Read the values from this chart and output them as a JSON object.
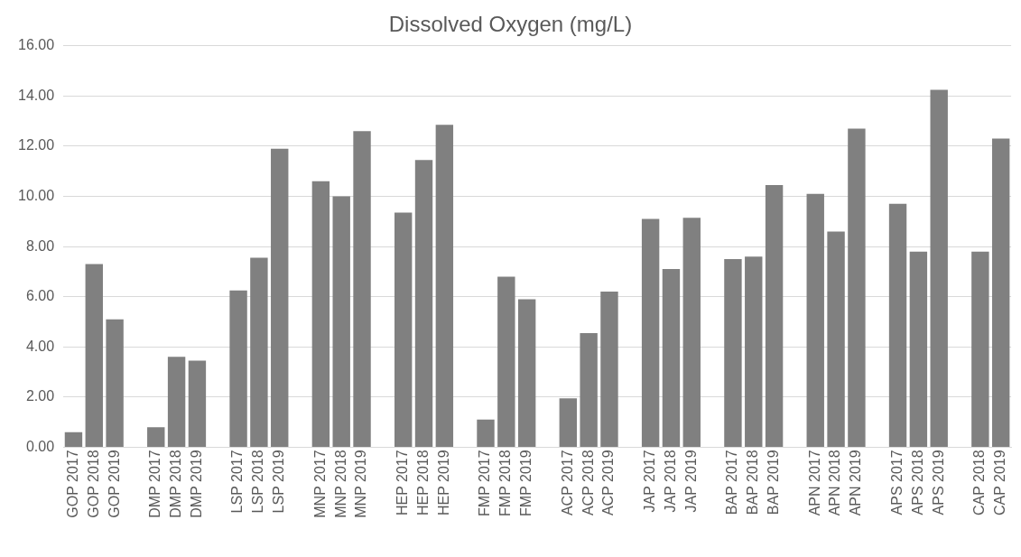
{
  "chart_data": {
    "type": "bar",
    "title": "Dissolved Oxygen (mg/L)",
    "categories": [
      "GOP 2017",
      "GOP 2018",
      "GOP 2019",
      null,
      "DMP 2017",
      "DMP 2018",
      "DMP 2019",
      null,
      "LSP 2017",
      "LSP 2018",
      "LSP 2019",
      null,
      "MNP 2017",
      "MNP 2018",
      "MNP 2019",
      null,
      "HEP 2017",
      "HEP 2018",
      "HEP 2019",
      null,
      "FMP 2017",
      "FMP 2018",
      "FMP 2019",
      null,
      "ACP 2017",
      "ACP 2018",
      "ACP 2019",
      null,
      "JAP 2017",
      "JAP 2018",
      "JAP 2019",
      null,
      "BAP 2017",
      "BAP 2018",
      "BAP 2019",
      null,
      "APN 2017",
      "APN 2018",
      "APN 2019",
      null,
      "APS 2017",
      "APS 2018",
      "APS 2019",
      null,
      "CAP 2018",
      "CAP 2019"
    ],
    "values": [
      0.6,
      7.3,
      5.1,
      null,
      0.8,
      3.6,
      3.45,
      null,
      6.25,
      7.55,
      11.9,
      null,
      10.6,
      10.0,
      12.6,
      null,
      9.35,
      11.45,
      12.85,
      null,
      1.1,
      6.8,
      5.9,
      null,
      1.95,
      4.55,
      6.2,
      null,
      9.1,
      7.1,
      9.15,
      null,
      7.5,
      7.6,
      10.45,
      null,
      10.1,
      8.6,
      12.7,
      null,
      9.7,
      7.8,
      14.25,
      null,
      7.8,
      12.3
    ],
    "color": "#808080",
    "ylim": [
      0,
      16
    ],
    "yticks": [
      {
        "value": 0,
        "label": "0.00"
      },
      {
        "value": 2,
        "label": "2.00"
      },
      {
        "value": 4,
        "label": "4.00"
      },
      {
        "value": 6,
        "label": "6.00"
      },
      {
        "value": 8,
        "label": "8.00"
      },
      {
        "value": 10,
        "label": "10.00"
      },
      {
        "value": 12,
        "label": "12.00"
      },
      {
        "value": 14,
        "label": "14.00"
      },
      {
        "value": 16,
        "label": "16.00"
      }
    ],
    "grid": "y",
    "legend": false
  }
}
